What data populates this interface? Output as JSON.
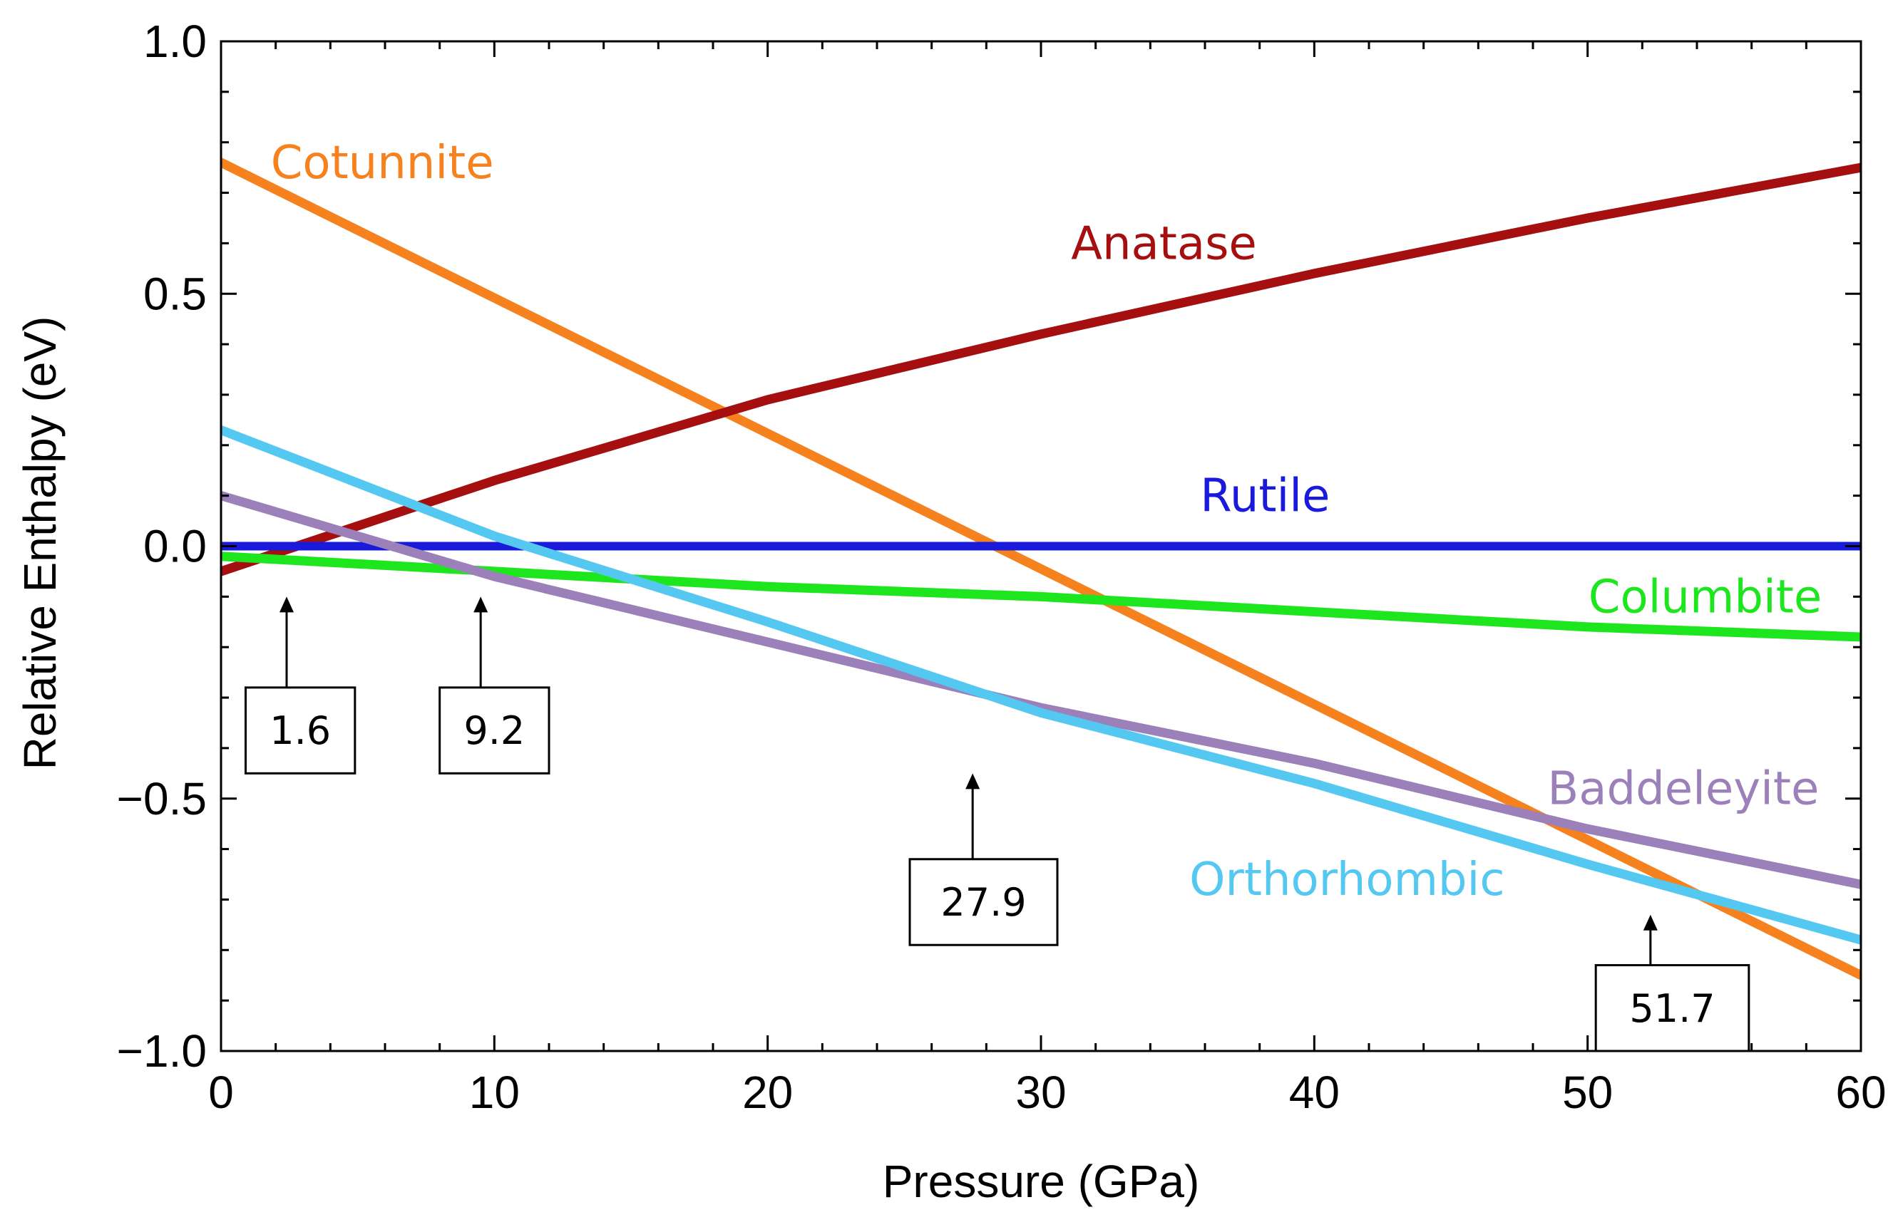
{
  "chart_data": {
    "type": "line",
    "title": "",
    "xlabel": "Pressure (GPa)",
    "ylabel": "Relative Enthalpy (eV)",
    "xlim": [
      0,
      60
    ],
    "ylim": [
      -1.0,
      1.0
    ],
    "xticks": [
      0,
      10,
      20,
      30,
      40,
      50,
      60
    ],
    "xtick_labels": [
      "0",
      "10",
      "20",
      "30",
      "40",
      "50",
      "60"
    ],
    "yticks": [
      1.0,
      0.5,
      0.0,
      -0.5,
      -1.0
    ],
    "ytick_labels": [
      "1.0",
      "0.5",
      "0.0",
      "−0.5",
      "−1.0"
    ],
    "grid": false,
    "series": [
      {
        "name": "Cotunnite",
        "color": "#f5821f",
        "x": [
          0,
          60
        ],
        "y": [
          0.76,
          -0.85
        ]
      },
      {
        "name": "Anatase",
        "color": "#a50f0f",
        "x": [
          0,
          10,
          20,
          30,
          40,
          50,
          60
        ],
        "y": [
          -0.05,
          0.13,
          0.29,
          0.42,
          0.54,
          0.65,
          0.75
        ]
      },
      {
        "name": "Rutile",
        "color": "#1a1adb",
        "x": [
          0,
          60
        ],
        "y": [
          0.0,
          0.0
        ]
      },
      {
        "name": "Columbite",
        "color": "#1ee61e",
        "x": [
          0,
          10,
          20,
          30,
          40,
          50,
          60
        ],
        "y": [
          -0.02,
          -0.05,
          -0.08,
          -0.1,
          -0.13,
          -0.16,
          -0.18
        ]
      },
      {
        "name": "Baddeleyite",
        "color": "#9b80b9",
        "x": [
          0,
          10,
          20,
          30,
          40,
          50,
          60
        ],
        "y": [
          0.1,
          -0.06,
          -0.19,
          -0.32,
          -0.43,
          -0.56,
          -0.67
        ]
      },
      {
        "name": "Orthorhombic",
        "color": "#54c8f0",
        "x": [
          0,
          10,
          20,
          30,
          40,
          50,
          60
        ],
        "y": [
          0.23,
          0.02,
          -0.15,
          -0.33,
          -0.47,
          -0.63,
          -0.78
        ]
      }
    ],
    "labels": [
      {
        "text": "Cotunnite",
        "x": 5.9,
        "y": 0.76
      },
      {
        "text": "Anatase",
        "x": 34.5,
        "y": 0.6
      },
      {
        "text": "Rutile",
        "x": 38.2,
        "y": 0.1
      },
      {
        "text": "Columbite",
        "x": 54.3,
        "y": -0.1
      },
      {
        "text": "Baddeleyite",
        "x": 53.5,
        "y": -0.48
      },
      {
        "text": "Orthorhombic",
        "x": 41.2,
        "y": -0.66
      }
    ],
    "annotations": [
      {
        "text": "1.6",
        "x": 2.4,
        "arrow_tip_y": -0.1,
        "arrow_tail_y": -0.28,
        "box_x": [
          0.9,
          4.9
        ],
        "box_y": [
          -0.28,
          -0.45
        ]
      },
      {
        "text": "9.2",
        "x": 9.5,
        "arrow_tip_y": -0.1,
        "arrow_tail_y": -0.28,
        "box_x": [
          8.0,
          12.0
        ],
        "box_y": [
          -0.28,
          -0.45
        ]
      },
      {
        "text": "27.9",
        "x": 27.5,
        "arrow_tip_y": -0.45,
        "arrow_tail_y": -0.62,
        "box_x": [
          25.2,
          30.6
        ],
        "box_y": [
          -0.62,
          -0.79
        ]
      },
      {
        "text": "51.7",
        "x": 52.3,
        "arrow_tip_y": -0.73,
        "arrow_tail_y": -0.83,
        "box_x": [
          50.3,
          55.9
        ],
        "box_y": [
          -0.83,
          -1.0
        ]
      }
    ]
  }
}
